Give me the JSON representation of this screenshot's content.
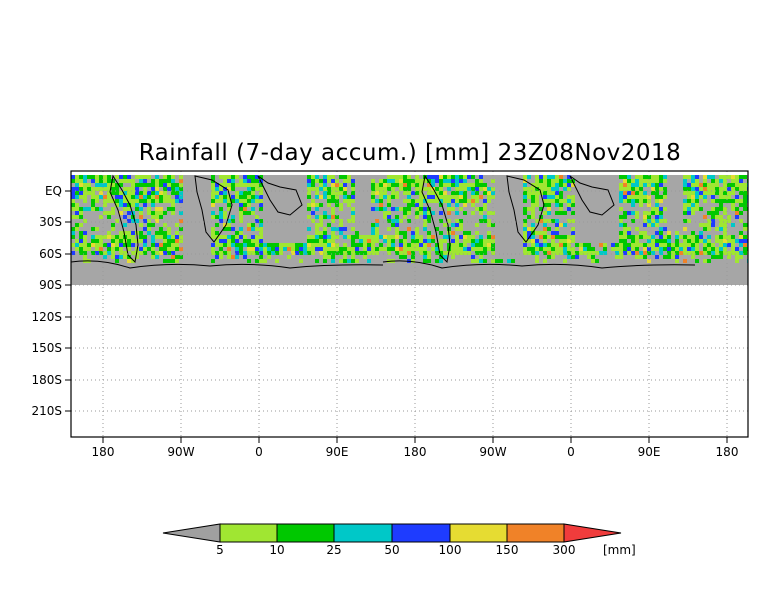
{
  "title": "Rainfall (7-day accum.) [mm] 23Z08Nov2018",
  "map": {
    "y_axis_labels": [
      "EQ",
      "30S",
      "60S",
      "90S",
      "120S",
      "150S",
      "180S",
      "210S"
    ],
    "x_axis_labels": [
      "180",
      "90W",
      "0",
      "90E",
      "180",
      "90W",
      "0",
      "90E",
      "180"
    ],
    "grid": "dotted",
    "land_color": "#a6a6a6",
    "no_data_color": "#ffffff"
  },
  "colorbar": {
    "ticks": [
      "5",
      "10",
      "25",
      "50",
      "100",
      "150",
      "300"
    ],
    "unit": "[mm]",
    "colors": [
      "#a0a0a0",
      "#a0e632",
      "#00c800",
      "#00c8c8",
      "#1e3cff",
      "#e6dc32",
      "#f08228",
      "#f03c3c"
    ]
  }
}
